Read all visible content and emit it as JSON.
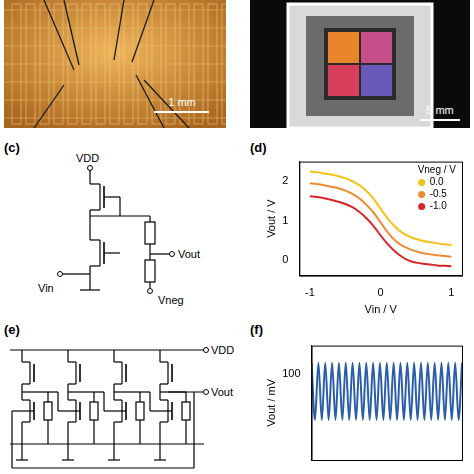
{
  "photos": [
    {
      "scale_bar": "1 mm"
    },
    {
      "scale_bar": "5 mm"
    }
  ],
  "circuits": [
    {
      "panel": "(c)",
      "nodes": {
        "supply": "VDD",
        "input": "Vin",
        "output": "Vout",
        "negative": "Vneg"
      }
    },
    {
      "panel": "(e)",
      "nodes": {
        "supply": "VDD",
        "output": "Vout"
      }
    }
  ],
  "chart_data": [
    {
      "panel": "(d)",
      "type": "line",
      "x": [
        -1,
        -0.9,
        -0.8,
        -0.7,
        -0.6,
        -0.5,
        -0.4,
        -0.3,
        -0.2,
        -0.1,
        0,
        0.1,
        0.2,
        0.3,
        0.4,
        0.5,
        0.6,
        0.7,
        0.8,
        0.9,
        1
      ],
      "series": [
        {
          "name": "0.0",
          "color": "#f2c318",
          "values": [
            2.25,
            2.23,
            2.2,
            2.17,
            2.13,
            2.08,
            2.0,
            1.9,
            1.75,
            1.55,
            1.3,
            1.05,
            0.85,
            0.7,
            0.6,
            0.53,
            0.48,
            0.45,
            0.42,
            0.4,
            0.38
          ]
        },
        {
          "name": "-0.5",
          "color": "#ee8a30",
          "values": [
            1.95,
            1.93,
            1.9,
            1.86,
            1.82,
            1.76,
            1.68,
            1.56,
            1.4,
            1.2,
            0.95,
            0.7,
            0.5,
            0.37,
            0.28,
            0.22,
            0.17,
            0.14,
            0.12,
            0.1,
            0.08
          ]
        },
        {
          "name": "-1.0",
          "color": "#d6262a",
          "values": [
            1.62,
            1.6,
            1.57,
            1.53,
            1.48,
            1.42,
            1.34,
            1.22,
            1.06,
            0.86,
            0.62,
            0.4,
            0.22,
            0.08,
            -0.02,
            -0.07,
            -0.1,
            -0.12,
            -0.14,
            -0.15,
            -0.16
          ]
        }
      ],
      "xlabel": "Vin / V",
      "ylabel": "Vout / V",
      "legend_title": "Vneg / V",
      "legend": "upper right",
      "xlim": [
        -1.15,
        1.15
      ],
      "xticks": [
        -1,
        0,
        1
      ],
      "ylim": [
        -0.4,
        2.5
      ],
      "yticks": [
        0,
        1,
        2
      ],
      "grid": false
    },
    {
      "panel": "(f)",
      "type": "line",
      "x": [
        0,
        1,
        2,
        3,
        4,
        5,
        6,
        7,
        8,
        9,
        10,
        11,
        12,
        13,
        14,
        15,
        16,
        17,
        18,
        19,
        20,
        21,
        22,
        23,
        24,
        25,
        26,
        27,
        28,
        29,
        30,
        31,
        32,
        33,
        34,
        35,
        36,
        37,
        38,
        39,
        40,
        41,
        42,
        43,
        44
      ],
      "values": [
        104,
        84,
        104,
        84,
        104,
        84,
        104,
        84,
        104,
        84,
        104,
        84,
        104,
        84,
        104,
        84,
        104,
        84,
        104,
        84,
        104,
        84,
        104,
        84,
        104,
        84,
        104,
        84,
        104,
        84,
        104,
        84,
        104,
        84,
        104,
        84,
        104,
        84,
        104,
        84,
        104,
        84,
        104,
        84,
        104
      ],
      "color": "#2b5ea8",
      "ylabel": "Vout / mV",
      "xlim": [
        0,
        44
      ],
      "ylim": [
        70,
        110
      ],
      "yticks": [
        100
      ],
      "grid": false,
      "tick_labels": "y"
    }
  ]
}
